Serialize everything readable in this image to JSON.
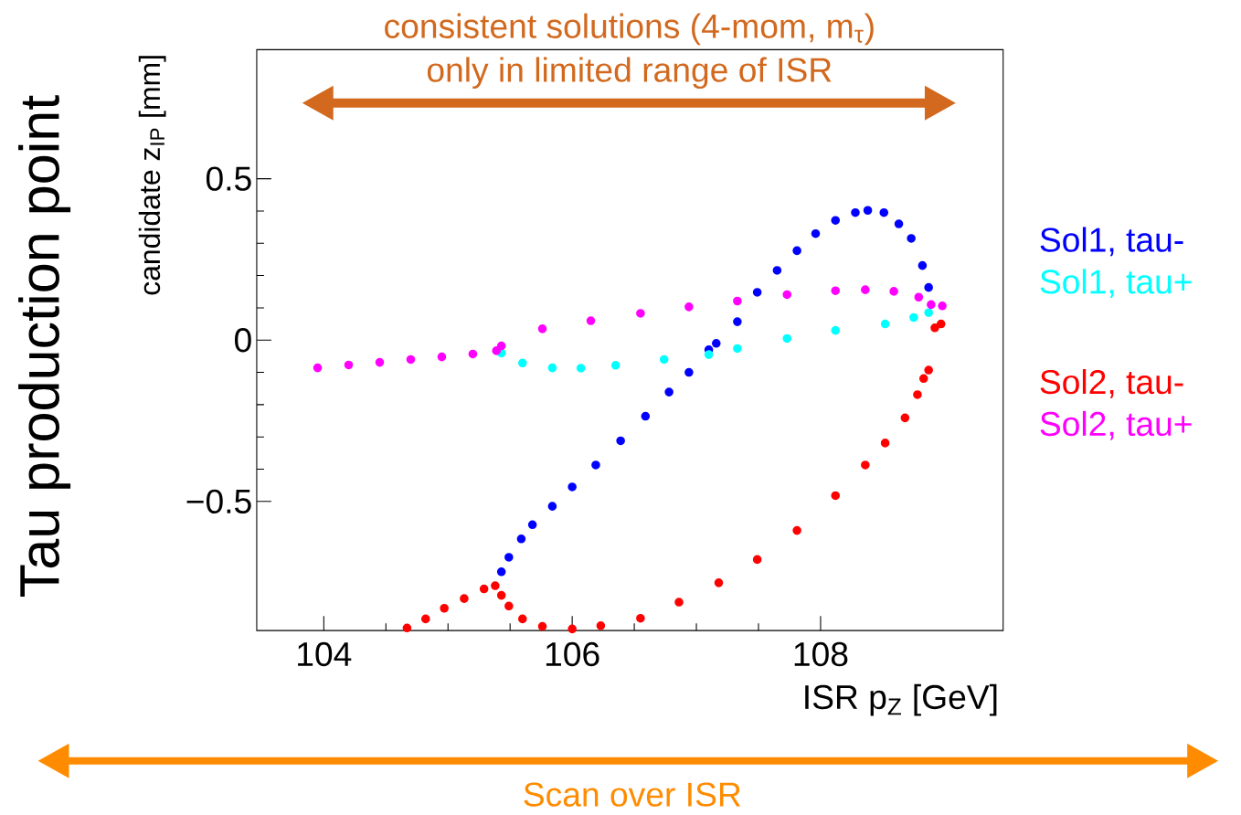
{
  "chart_data": {
    "type": "scatter",
    "xlabel": "ISR p$_{Z}$ [GeV]",
    "ylabel": "candidate z$_{IP}$ [mm]",
    "annotations": [
      "consistent solutions (4-mom, m$_{τ}$)",
      "only in limited range of ISR",
      "Tau production point",
      "Scan over ISR"
    ],
    "xlim": [
      103.46,
      109.47
    ],
    "ylim": [
      -0.9,
      0.9
    ],
    "xticks": [
      104,
      106,
      108
    ],
    "yticks": [
      {
        "value": -0.5,
        "label": "−0.5"
      },
      0,
      0.5
    ],
    "legend": "right",
    "marker": "circle",
    "grid": false,
    "series": [
      {
        "name": "Sol1, tau-",
        "color": "#0000ff",
        "x": [
          105.43,
          105.49,
          105.59,
          105.68,
          105.84,
          106.0,
          106.19,
          106.39,
          106.59,
          106.78,
          106.94,
          107.1,
          107.16,
          107.33,
          107.49,
          107.65,
          107.81,
          107.96,
          108.12,
          108.28,
          108.38,
          108.51,
          108.63,
          108.73,
          108.82,
          108.87
        ],
        "values": [
          -0.718,
          -0.673,
          -0.616,
          -0.572,
          -0.515,
          -0.455,
          -0.387,
          -0.312,
          -0.236,
          -0.161,
          -0.1,
          -0.03,
          -0.01,
          0.057,
          0.148,
          0.216,
          0.277,
          0.33,
          0.371,
          0.395,
          0.402,
          0.395,
          0.36,
          0.315,
          0.231,
          0.163
        ]
      },
      {
        "name": "Sol1, tau+",
        "color": "#00ffff",
        "x": [
          105.43,
          105.6,
          105.84,
          106.07,
          106.35,
          106.74,
          107.1,
          107.33,
          107.73,
          108.12,
          108.52,
          108.75,
          108.87
        ],
        "values": [
          -0.04,
          -0.071,
          -0.086,
          -0.087,
          -0.078,
          -0.06,
          -0.045,
          -0.026,
          0.005,
          0.03,
          0.05,
          0.07,
          0.085
        ]
      },
      {
        "name": "Sol2, tau-",
        "color": "#ff0000",
        "x": [
          104.67,
          104.82,
          104.97,
          105.13,
          105.29,
          105.38,
          105.43,
          105.49,
          105.6,
          105.76,
          106.0,
          106.23,
          106.55,
          106.86,
          107.18,
          107.49,
          107.81,
          108.12,
          108.36,
          108.52,
          108.68,
          108.78,
          108.83,
          108.87,
          108.92,
          108.97
        ],
        "values": [
          -0.892,
          -0.864,
          -0.831,
          -0.801,
          -0.771,
          -0.761,
          -0.791,
          -0.824,
          -0.864,
          -0.887,
          -0.895,
          -0.885,
          -0.862,
          -0.812,
          -0.752,
          -0.68,
          -0.59,
          -0.482,
          -0.387,
          -0.319,
          -0.241,
          -0.169,
          -0.119,
          -0.093,
          0.038,
          0.05
        ]
      },
      {
        "name": "Sol2, tau+",
        "color": "#ff00ff",
        "x": [
          103.95,
          104.2,
          104.45,
          104.7,
          104.95,
          105.2,
          105.39,
          105.43,
          105.76,
          106.15,
          106.55,
          106.94,
          107.33,
          107.73,
          108.12,
          108.36,
          108.59,
          108.79,
          108.89,
          108.98
        ],
        "values": [
          -0.086,
          -0.077,
          -0.069,
          -0.06,
          -0.052,
          -0.043,
          -0.033,
          -0.018,
          0.035,
          0.06,
          0.083,
          0.103,
          0.121,
          0.141,
          0.153,
          0.156,
          0.151,
          0.133,
          0.11,
          0.106
        ]
      }
    ]
  }
}
